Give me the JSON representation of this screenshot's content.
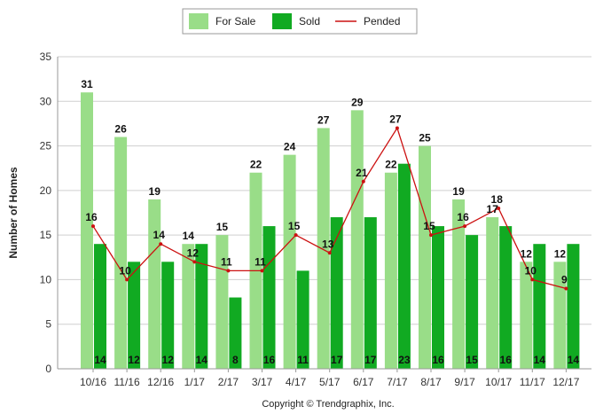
{
  "chart_data": {
    "type": "bar",
    "title": "",
    "xlabel": "",
    "ylabel": "Number of Homes",
    "ylim": [
      0,
      35
    ],
    "yticks": [
      0,
      5,
      10,
      15,
      20,
      25,
      30,
      35
    ],
    "grid": "horizontal",
    "legend_position": "top",
    "categories": [
      "10/16",
      "11/16",
      "12/16",
      "1/17",
      "2/17",
      "3/17",
      "4/17",
      "5/17",
      "6/17",
      "7/17",
      "8/17",
      "9/17",
      "10/17",
      "11/17",
      "12/17"
    ],
    "series": [
      {
        "name": "For Sale",
        "kind": "bar",
        "color": "#99dd88",
        "values": [
          31,
          26,
          19,
          14,
          15,
          22,
          24,
          27,
          29,
          22,
          25,
          19,
          17,
          12,
          12
        ]
      },
      {
        "name": "Sold",
        "kind": "bar",
        "color": "#11aa22",
        "values": [
          14,
          12,
          12,
          14,
          8,
          16,
          11,
          17,
          17,
          23,
          16,
          15,
          16,
          14,
          14
        ]
      },
      {
        "name": "Pended",
        "kind": "line",
        "color": "#cc1111",
        "values": [
          16,
          10,
          14,
          12,
          11,
          11,
          15,
          13,
          21,
          27,
          15,
          16,
          18,
          10,
          9
        ]
      }
    ],
    "footer": "Copyright © Trendgraphix, Inc."
  }
}
